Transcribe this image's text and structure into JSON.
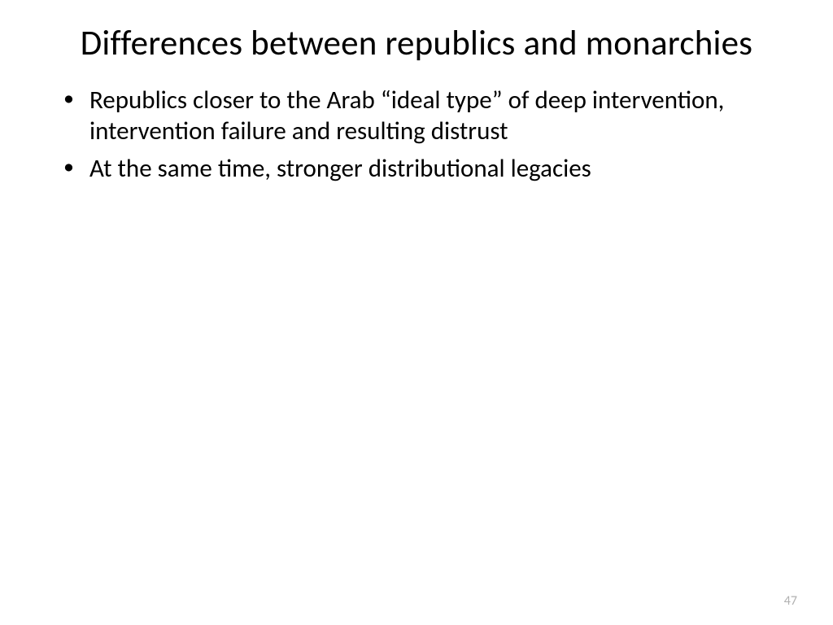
{
  "slide": {
    "title": "Differences between republics and monarchies",
    "bullets": [
      "Republics closer to the Arab “ideal type” of deep intervention, intervention failure and resulting distrust",
      "At the same time, stronger distributional legacies"
    ],
    "page_number": "47"
  },
  "styling": {
    "background_color": "#ffffff",
    "title_color": "#000000",
    "title_fontsize": 43,
    "title_fontweight": 400,
    "body_color": "#000000",
    "body_fontsize": 31,
    "page_number_color": "#b0b0b0",
    "page_number_fontsize": 16,
    "font_family": "Calibri"
  }
}
